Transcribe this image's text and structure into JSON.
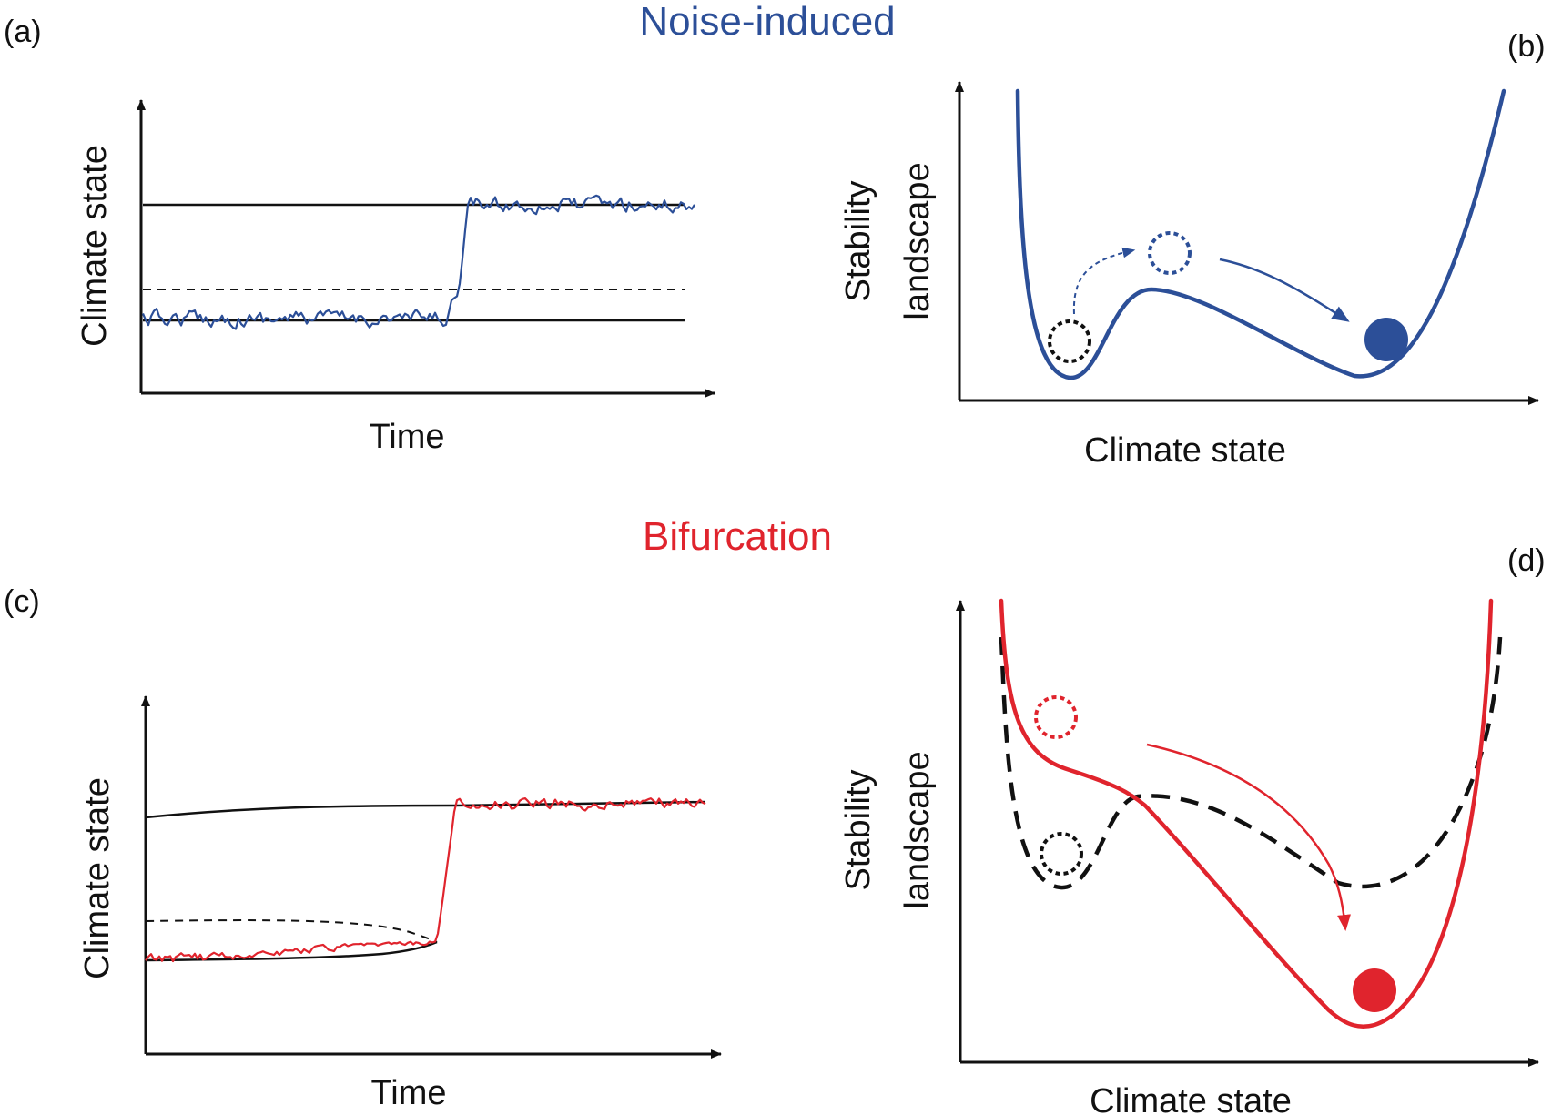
{
  "colors": {
    "noise": "#2c4f98",
    "bifurcation": "#e0242d",
    "ink": "#111111"
  },
  "noise_title": "Noise-induced",
  "bifurcation_title": "Bifurcation",
  "panels": {
    "a": {
      "label": "(a)",
      "ylabel": "Climate state",
      "xlabel": "Time"
    },
    "b": {
      "label": "(b)",
      "ylabel_line1": "Stability",
      "ylabel_line2": "landscape",
      "xlabel": "Climate state"
    },
    "c": {
      "label": "(c)",
      "ylabel": "Climate state",
      "xlabel": "Time"
    },
    "d": {
      "label": "(d)",
      "ylabel_line1": "Stability",
      "ylabel_line2": "landscape",
      "xlabel": "Climate state"
    }
  }
}
